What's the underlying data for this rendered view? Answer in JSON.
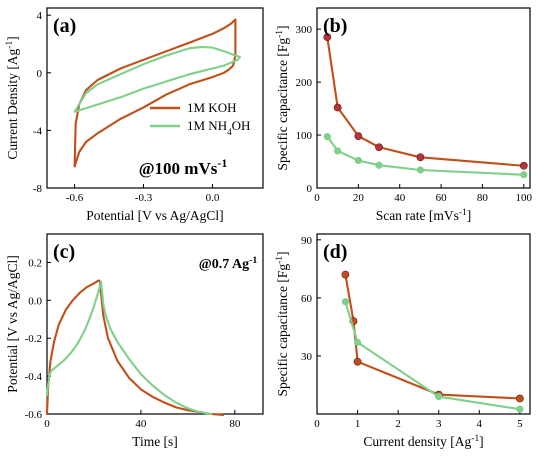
{
  "colors": {
    "koh": "#c0501a",
    "koh_marker": "#b8323a",
    "nh4oh": "#7fd08a",
    "axis": "#000000"
  },
  "legend": [
    {
      "label": "1M KOH",
      "color": "#c0501a"
    },
    {
      "label": "1M NH",
      "sub": "4",
      "tail": "OH",
      "color": "#7fd08a"
    }
  ],
  "chart_data": [
    {
      "id": "a",
      "type": "line",
      "panel_label": "(a)",
      "annotation": "@100 mVs",
      "annotation_sup": "-1",
      "xlabel": "Potential [V vs Ag/AgCl]",
      "ylabel": "Current Density [Ag",
      "ylabel_sup": "-1",
      "ylabel_tail": "]",
      "xlim": [
        -0.72,
        0.22
      ],
      "ylim": [
        -8,
        4.5
      ],
      "xticks": [
        -0.6,
        -0.3,
        0.0
      ],
      "xtick_labels": [
        "-0.6",
        "-0.3",
        "0.0"
      ],
      "yticks": [
        -8,
        -4,
        0,
        4
      ],
      "ytick_labels": [
        "-8",
        "-4",
        "0",
        "4"
      ],
      "series": [
        {
          "name": "1M KOH",
          "color": "#c0501a",
          "x": [
            -0.6,
            -0.595,
            -0.58,
            -0.55,
            -0.5,
            -0.4,
            -0.3,
            -0.2,
            -0.1,
            0.0,
            0.05,
            0.08,
            0.1,
            0.1,
            0.09,
            0.07,
            0.05,
            0.0,
            -0.1,
            -0.2,
            -0.3,
            -0.4,
            -0.5,
            -0.55,
            -0.58,
            -0.6
          ],
          "y": [
            -6.5,
            -3.5,
            -2.2,
            -1.2,
            -0.5,
            0.3,
            0.9,
            1.5,
            2.1,
            2.7,
            3.1,
            3.4,
            3.7,
            1.2,
            0.5,
            0.2,
            0.0,
            -0.3,
            -0.8,
            -1.5,
            -2.4,
            -3.2,
            -4.2,
            -4.8,
            -5.5,
            -6.5
          ]
        },
        {
          "name": "1M NH4OH",
          "color": "#7fd08a",
          "x": [
            -0.6,
            -0.55,
            -0.5,
            -0.4,
            -0.3,
            -0.2,
            -0.1,
            -0.05,
            0.0,
            0.05,
            0.1,
            0.12,
            0.11,
            0.05,
            0.0,
            -0.1,
            -0.2,
            -0.3,
            -0.4,
            -0.5,
            -0.55,
            -0.6
          ],
          "y": [
            -2.7,
            -1.4,
            -0.8,
            -0.1,
            0.6,
            1.2,
            1.7,
            1.8,
            1.75,
            1.5,
            1.2,
            1.1,
            0.9,
            0.5,
            0.3,
            -0.1,
            -0.6,
            -1.1,
            -1.7,
            -2.2,
            -2.45,
            -2.7
          ]
        }
      ]
    },
    {
      "id": "b",
      "type": "line",
      "panel_label": "(b)",
      "xlabel": "Scan rate [mVs",
      "xlabel_sup": "-1",
      "xlabel_tail": "]",
      "ylabel": "Specific capacitance [Fg",
      "ylabel_sup": "-1",
      "ylabel_tail": "]",
      "xlim": [
        0,
        103
      ],
      "ylim": [
        0,
        340
      ],
      "xticks": [
        0,
        20,
        40,
        60,
        80,
        100
      ],
      "xtick_labels": [
        "0",
        "20",
        "40",
        "60",
        "80",
        "100"
      ],
      "yticks": [
        0,
        100,
        200,
        300
      ],
      "ytick_labels": [
        "0",
        "100",
        "200",
        "300"
      ],
      "series": [
        {
          "name": "1M KOH",
          "color": "#c0501a",
          "marker_color": "#b8323a",
          "x": [
            5,
            10,
            20,
            30,
            50,
            100
          ],
          "y": [
            285,
            152,
            98,
            77,
            58,
            42
          ]
        },
        {
          "name": "1M NH4OH",
          "color": "#7fd08a",
          "marker_color": "#7fd08a",
          "x": [
            5,
            10,
            20,
            30,
            50,
            100
          ],
          "y": [
            97,
            70,
            52,
            43,
            34,
            25
          ]
        }
      ]
    },
    {
      "id": "c",
      "type": "line",
      "panel_label": "(c)",
      "annotation": "@0.7 Ag",
      "annotation_sup": "-1",
      "xlabel": "Time [s]",
      "ylabel": "Potential [V vs Ag/AgCl]",
      "xlim": [
        0,
        92
      ],
      "ylim": [
        -0.6,
        0.35
      ],
      "xticks": [
        0,
        40,
        80
      ],
      "xtick_labels": [
        "0",
        "40",
        "80"
      ],
      "yticks": [
        -0.6,
        -0.4,
        -0.2,
        0.0,
        0.2
      ],
      "ytick_labels": [
        "-0.6",
        "-0.4",
        "-0.2",
        "0.0",
        "0.2"
      ],
      "series": [
        {
          "name": "1M KOH",
          "color": "#c0501a",
          "x": [
            0,
            0.5,
            1.5,
            3,
            5,
            8,
            11,
            14,
            17,
            20,
            22,
            22.5,
            24,
            26,
            30,
            35,
            40,
            45,
            50,
            55,
            60,
            65,
            70,
            75
          ],
          "y": [
            -0.6,
            -0.45,
            -0.32,
            -0.22,
            -0.13,
            -0.05,
            0.0,
            0.04,
            0.07,
            0.09,
            0.105,
            0.1,
            -0.08,
            -0.2,
            -0.32,
            -0.41,
            -0.47,
            -0.51,
            -0.54,
            -0.565,
            -0.58,
            -0.59,
            -0.6,
            -0.605
          ]
        },
        {
          "name": "1M NH4OH",
          "color": "#7fd08a",
          "x": [
            0,
            1,
            2,
            4,
            7,
            10,
            13,
            16,
            18,
            20,
            22,
            23,
            24,
            25,
            27,
            30,
            35,
            40,
            45,
            50,
            55,
            60,
            65,
            70
          ],
          "y": [
            -0.5,
            -0.39,
            -0.37,
            -0.35,
            -0.32,
            -0.28,
            -0.23,
            -0.16,
            -0.1,
            -0.03,
            0.05,
            0.1,
            -0.02,
            -0.08,
            -0.15,
            -0.22,
            -0.31,
            -0.39,
            -0.45,
            -0.5,
            -0.54,
            -0.57,
            -0.59,
            -0.6
          ]
        }
      ]
    },
    {
      "id": "d",
      "type": "line",
      "panel_label": "(d)",
      "xlabel": "Current density [Ag",
      "xlabel_sup": "-1",
      "xlabel_tail": "]",
      "ylabel": "Specific capacitance [Fg",
      "ylabel_sup": "-1",
      "ylabel_tail": "]",
      "xlim": [
        0,
        5.25
      ],
      "ylim": [
        0,
        93
      ],
      "xticks": [
        0,
        1,
        2,
        3,
        4,
        5
      ],
      "xtick_labels": [
        "0",
        "1",
        "2",
        "3",
        "4",
        "5"
      ],
      "yticks": [
        30,
        60,
        90
      ],
      "ytick_labels": [
        "30",
        "60",
        "90"
      ],
      "series": [
        {
          "name": "1M KOH",
          "color": "#c0501a",
          "marker_color": "#c0501a",
          "x": [
            0.7,
            0.9,
            1.0,
            3.0,
            5.0
          ],
          "y": [
            72,
            48,
            27,
            10,
            8
          ]
        },
        {
          "name": "1M NH4OH",
          "color": "#7fd08a",
          "marker_color": "#7fd08a",
          "x": [
            0.7,
            1.0,
            3.0,
            5.0
          ],
          "y": [
            58,
            37,
            9,
            2.5
          ]
        }
      ]
    }
  ]
}
